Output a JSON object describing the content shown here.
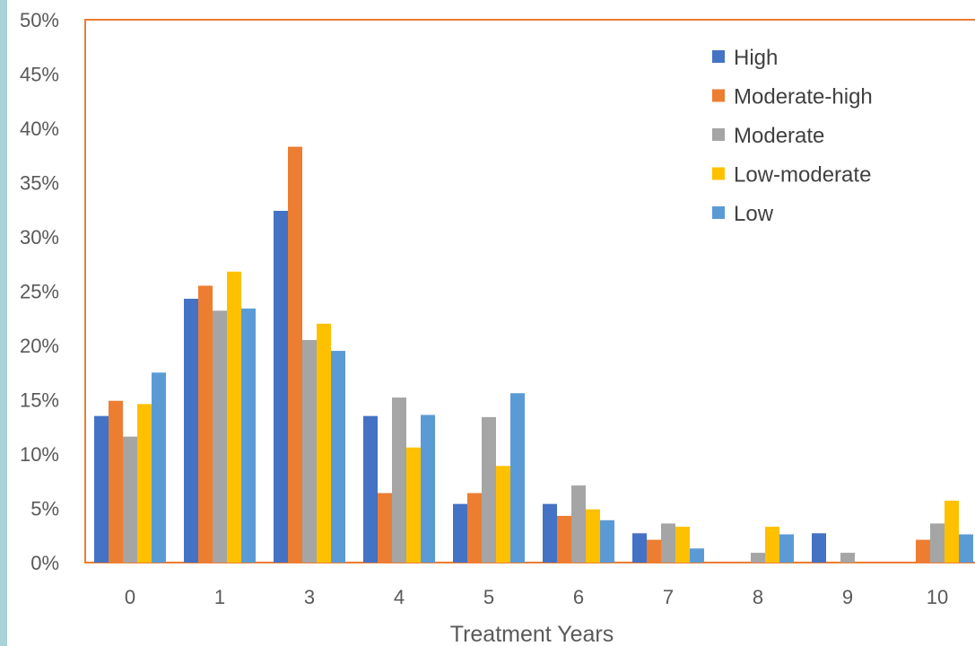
{
  "chart_data": {
    "type": "bar",
    "title": "",
    "xlabel": "Treatment Years",
    "ylabel": "",
    "categories": [
      "0",
      "1",
      "3",
      "4",
      "5",
      "6",
      "7",
      "8",
      "9",
      "10"
    ],
    "ylim": [
      0,
      0.5
    ],
    "yticks": [
      "0%",
      "5%",
      "10%",
      "15%",
      "20%",
      "25%",
      "30%",
      "35%",
      "40%",
      "45%",
      "50%"
    ],
    "grid": false,
    "legend_position": "top-right",
    "series": [
      {
        "name": "High",
        "color": "#4472c4",
        "values": [
          0.135,
          0.243,
          0.324,
          0.135,
          0.054,
          0.054,
          0.027,
          0.0,
          0.027,
          0.0
        ]
      },
      {
        "name": "Moderate-high",
        "color": "#ed7d31",
        "values": [
          0.149,
          0.255,
          0.383,
          0.064,
          0.064,
          0.043,
          0.021,
          0.0,
          0.0,
          0.021
        ]
      },
      {
        "name": "Moderate",
        "color": "#a5a5a5",
        "values": [
          0.116,
          0.232,
          0.205,
          0.152,
          0.134,
          0.071,
          0.036,
          0.009,
          0.009,
          0.036
        ]
      },
      {
        "name": "Low-moderate",
        "color": "#ffc000",
        "values": [
          0.146,
          0.268,
          0.22,
          0.106,
          0.089,
          0.049,
          0.033,
          0.033,
          0.0,
          0.057
        ]
      },
      {
        "name": "Low",
        "color": "#5b9bd5",
        "values": [
          0.175,
          0.234,
          0.195,
          0.136,
          0.156,
          0.039,
          0.013,
          0.026,
          0.0,
          0.026
        ]
      }
    ]
  }
}
